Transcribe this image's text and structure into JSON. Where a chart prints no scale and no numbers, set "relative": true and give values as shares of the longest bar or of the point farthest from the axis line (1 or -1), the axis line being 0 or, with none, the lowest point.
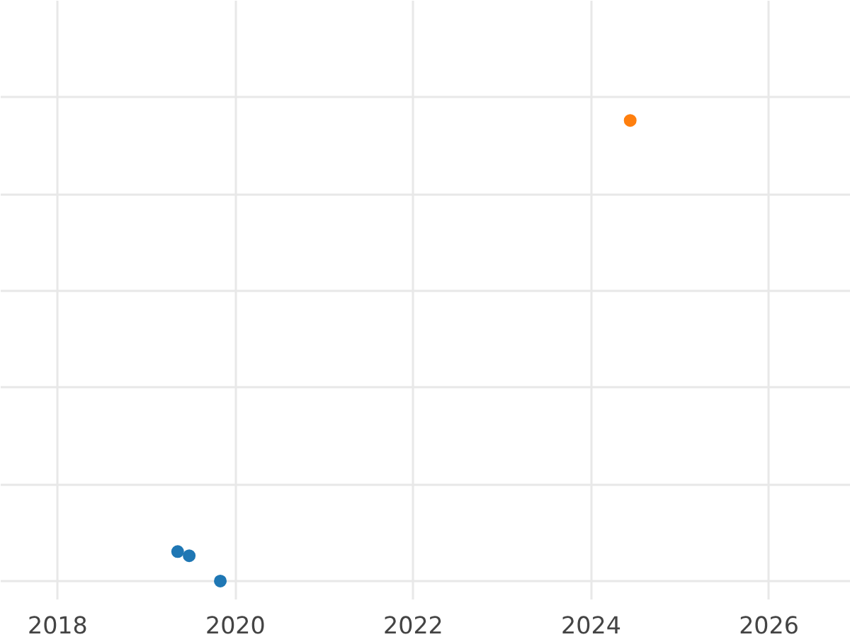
{
  "chart_data": {
    "type": "scatter",
    "relative": true,
    "grid": true,
    "marker": "circle",
    "xlim": [
      2017.36,
      2026.92
    ],
    "xticks": [
      2018,
      2020,
      2022,
      2024,
      2026
    ],
    "series": [
      {
        "color": "#1f77b4",
        "x": [
          2019.35,
          2019.48,
          2019.83
        ],
        "values": [
          0.064,
          0.055,
          0
        ]
      },
      {
        "color": "#ff7f0e",
        "x": [
          2024.44
        ],
        "values": [
          1
        ]
      }
    ]
  }
}
